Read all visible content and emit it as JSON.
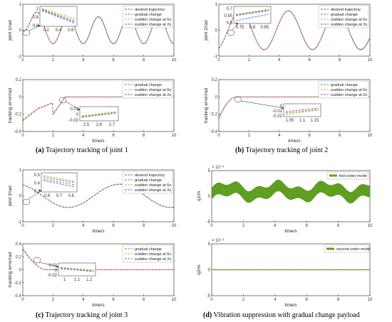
{
  "colors": {
    "desired": "#3b6fd6",
    "gradual": "#3fa93f",
    "sudden6": "#d6b21c",
    "sudden2": "#b03ac8",
    "vib": "#5f9e1f"
  },
  "captions": [
    {
      "label": "(a)",
      "text": " Trajectory tracking of joint 1"
    },
    {
      "label": "(b)",
      "text": " Trajectory tracking of joint 2"
    },
    {
      "label": "(c)",
      "text": " Trajectory tracking of joint 3"
    },
    {
      "label": "(d)",
      "text": " Vibration suppression with gradual change payload"
    }
  ],
  "legends": {
    "four": [
      "desired trajectory",
      "gradual change",
      "sudden change at 6s",
      "sudden change at 2s"
    ],
    "three": [
      "gradual change",
      "sudden change at 6s",
      "sudden change at 2s"
    ],
    "first": [
      "first-order mode"
    ],
    "second": [
      "second-order mode"
    ]
  },
  "exp_label": "× 10⁻³",
  "chart_data": [
    {
      "id": "a-top",
      "type": "line",
      "xlabel": "",
      "ylabel": "joint 1/rad",
      "xlim": [
        0,
        10
      ],
      "ylim": [
        -1,
        1
      ],
      "xticks": [
        "0",
        "2",
        "4",
        "6",
        "8",
        "10"
      ],
      "yticks": [
        "-1",
        "0",
        "1"
      ],
      "series": [
        {
          "name": "desired trajectory"
        },
        {
          "name": "gradual change"
        },
        {
          "name": "sudden change at 6s"
        },
        {
          "name": "sudden change at 2s"
        }
      ],
      "inset": {
        "xticks": [
          "0.2",
          "0.4",
          "0.6"
        ],
        "yticks": [
          "1",
          "0.8",
          "0.6"
        ]
      }
    },
    {
      "id": "a-bot",
      "type": "line",
      "xlabel": "time/s",
      "ylabel": "tracking error/rad",
      "xlim": [
        0,
        10
      ],
      "ylim": [
        -0.4,
        0.2
      ],
      "xticks": [
        "0",
        "2",
        "4",
        "6",
        "8",
        "10"
      ],
      "yticks": [
        "-0.4",
        "-0.2",
        "0",
        "0.2"
      ],
      "series": [
        {
          "name": "gradual change"
        },
        {
          "name": "sudden change at 6s"
        },
        {
          "name": "sudden change at 2s"
        }
      ],
      "inset": {
        "xticks": [
          "2.5",
          "2.6",
          "2.7"
        ],
        "yticks": [
          "0.02",
          "0",
          "-0.02"
        ]
      }
    },
    {
      "id": "b-top",
      "type": "line",
      "xlabel": "",
      "ylabel": "joint 2/rad",
      "xlim": [
        0,
        10
      ],
      "ylim": [
        -1,
        1
      ],
      "xticks": [
        "0",
        "2",
        "4",
        "6",
        "8",
        "10"
      ],
      "yticks": [
        "-1",
        "0",
        "1"
      ],
      "series": [
        {
          "name": "desired trajectory"
        },
        {
          "name": "gradual change"
        },
        {
          "name": "sudden change at 6s"
        },
        {
          "name": "sudden change at 2s"
        }
      ],
      "inset": {
        "xticks": [
          "0.75",
          "0.8",
          "0.85"
        ],
        "yticks": [
          "0.7",
          "0.65",
          "0.6"
        ]
      }
    },
    {
      "id": "b-bot",
      "type": "line",
      "xlabel": "time/s",
      "ylabel": "tracking error/rad",
      "xlim": [
        0,
        10
      ],
      "ylim": [
        -0.4,
        0.2
      ],
      "xticks": [
        "0",
        "2",
        "4",
        "6",
        "8",
        "10"
      ],
      "yticks": [
        "-0.4",
        "-0.2",
        "0",
        "0.2"
      ],
      "series": [
        {
          "name": "gradual change"
        },
        {
          "name": "sudden change at 6s"
        },
        {
          "name": "sudden change at 2s"
        }
      ],
      "inset": {
        "xticks": [
          "1.05",
          "1.1",
          "1.15"
        ],
        "yticks": [
          "0",
          "-0.01",
          "-0.02"
        ]
      }
    },
    {
      "id": "c-top",
      "type": "line",
      "xlabel": "time/s",
      "ylabel": "joint 3/rad",
      "xlim": [
        0,
        10
      ],
      "ylim": [
        -1,
        1
      ],
      "xticks": [
        "0",
        "2",
        "4",
        "6",
        "8",
        "10"
      ],
      "yticks": [
        "-1",
        "0",
        "1"
      ],
      "series": [
        {
          "name": "desired trajectory"
        },
        {
          "name": "gradual change"
        },
        {
          "name": "sudden change at 6s"
        },
        {
          "name": "sudden change at 2s"
        }
      ],
      "inset": {
        "xticks": [
          "0.6",
          "0.7",
          "0.8"
        ],
        "yticks": [
          "0.5",
          "0.4",
          "0.3"
        ]
      }
    },
    {
      "id": "c-bot",
      "type": "line",
      "xlabel": "time/s",
      "ylabel": "tracking error/rad",
      "xlim": [
        0,
        10
      ],
      "ylim": [
        -0.4,
        0.4
      ],
      "xticks": [
        "0",
        "2",
        "4",
        "6",
        "8",
        "10"
      ],
      "yticks": [
        "-0.4",
        "-0.2",
        "0",
        "0.2",
        "0.4"
      ],
      "series": [
        {
          "name": "gradual change"
        },
        {
          "name": "sudden change at 6s"
        },
        {
          "name": "sudden change at 2s"
        }
      ],
      "inset": {
        "xticks": [
          "1",
          "1.1",
          "1.2"
        ],
        "yticks": [
          "0.02",
          "0",
          "-0.02"
        ]
      }
    },
    {
      "id": "d-top",
      "type": "area",
      "xlabel": "time/s",
      "ylabel": "q1/m",
      "xlim": [
        0,
        10
      ],
      "ylim": [
        -5,
        5
      ],
      "yscale_note": "× 10⁻³",
      "xticks": [
        "0",
        "2",
        "4",
        "6",
        "8",
        "10"
      ],
      "yticks": [
        "-5",
        "0",
        "5"
      ],
      "series": [
        {
          "name": "first-order mode"
        }
      ]
    },
    {
      "id": "d-bot",
      "type": "line",
      "xlabel": "time/s",
      "ylabel": "q2/m",
      "xlim": [
        0,
        10
      ],
      "ylim": [
        -5,
        5
      ],
      "yscale_note": "× 10⁻³",
      "xticks": [
        "0",
        "2",
        "4",
        "6",
        "8",
        "10"
      ],
      "yticks": [
        "-5",
        "0",
        "5"
      ],
      "series": [
        {
          "name": "second-order mode"
        }
      ]
    }
  ]
}
